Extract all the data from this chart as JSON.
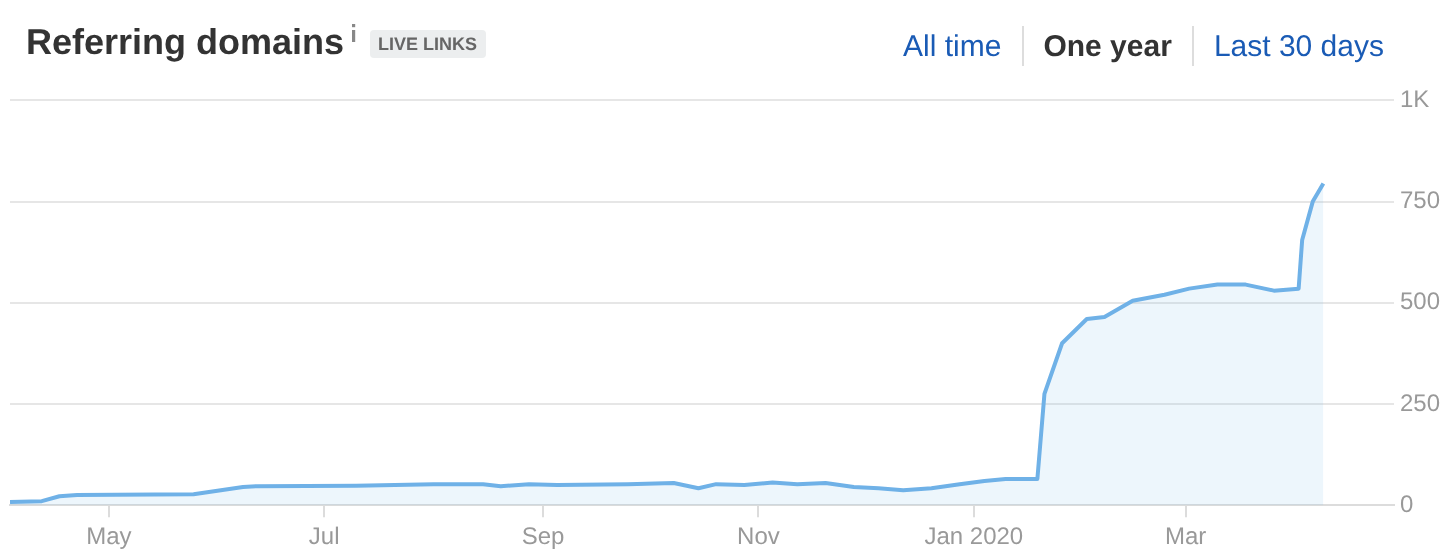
{
  "chart_data": {
    "type": "area",
    "title": "Referring domains",
    "subtitle": "LIVE LINKS",
    "annotations": [
      "All time",
      "One year",
      "Last 30 days"
    ],
    "x": [
      "2019-04-03",
      "2019-04-12",
      "2019-04-17",
      "2019-04-22",
      "2019-05-25",
      "2019-06-08",
      "2019-06-12",
      "2019-07-10",
      "2019-08-01",
      "2019-08-15",
      "2019-08-20",
      "2019-08-28",
      "2019-09-05",
      "2019-09-25",
      "2019-10-08",
      "2019-10-15",
      "2019-10-20",
      "2019-10-28",
      "2019-11-05",
      "2019-11-12",
      "2019-11-20",
      "2019-11-28",
      "2019-12-05",
      "2019-12-12",
      "2019-12-20",
      "2019-12-28",
      "2020-01-04",
      "2020-01-10",
      "2020-01-19",
      "2020-01-21",
      "2020-01-26",
      "2020-02-02",
      "2020-02-07",
      "2020-02-15",
      "2020-02-24",
      "2020-03-02",
      "2020-03-10",
      "2020-03-18",
      "2020-03-26",
      "2020-04-02",
      "2020-04-03",
      "2020-04-06",
      "2020-04-09"
    ],
    "series": [
      {
        "color": "#6fb1e7",
        "values": [
          8,
          10,
          22,
          25,
          27,
          45,
          47,
          48,
          52,
          52,
          47,
          52,
          50,
          52,
          55,
          42,
          52,
          50,
          56,
          52,
          55,
          45,
          42,
          37,
          42,
          52,
          60,
          65,
          65,
          275,
          400,
          460,
          465,
          505,
          520,
          535,
          545,
          545,
          530,
          535,
          655,
          750,
          795
        ]
      }
    ],
    "xlim": [
      "2019-04-03",
      "2020-04-29"
    ],
    "xticks": [
      {
        "value": "2019-05-01",
        "label": "May"
      },
      {
        "value": "2019-07-01",
        "label": "Jul"
      },
      {
        "value": "2019-09-01",
        "label": "Sep"
      },
      {
        "value": "2019-11-01",
        "label": "Nov"
      },
      {
        "value": "2020-01-01",
        "label": "Jan 2020"
      },
      {
        "value": "2020-03-01",
        "label": "Mar"
      }
    ],
    "ylim": [
      0,
      1000
    ],
    "yticks": [
      0,
      250,
      500,
      750,
      {
        "value": 1000,
        "label": "1K"
      }
    ],
    "grid": "y",
    "legend": false,
    "marker": "none",
    "line_style": "solid"
  }
}
